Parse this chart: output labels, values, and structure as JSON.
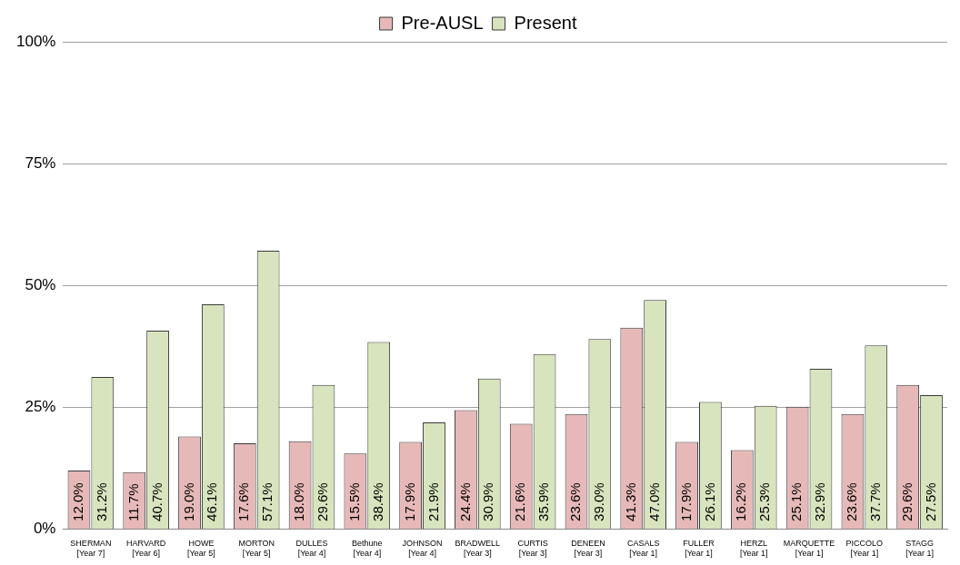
{
  "chart_data": {
    "type": "bar",
    "categories": [
      "SHERMAN\n[Year 7]",
      "HARVARD\n[Year 6]",
      "HOWE\n[Year 5]",
      "MORTON\n[Year 5]",
      "DULLES\n[Year 4]",
      "Bethune\n[Year 4]",
      "JOHNSON\n[Year 4]",
      "BRADWELL\n[Year 3]",
      "CURTIS\n[Year 3]",
      "DENEEN\n[Year 3]",
      "CASALS\n[Year 1]",
      "FULLER\n[Year 1]",
      "HERZL\n[Year 1]",
      "MARQUETTE\n[Year 1]",
      "PICCOLO\n[Year 1]",
      "STAGG\n[Year 1]"
    ],
    "series": [
      {
        "name": "Pre-AUSL",
        "color": "#e6b9b8",
        "values": [
          12.0,
          11.7,
          19.0,
          17.6,
          18.0,
          15.5,
          17.9,
          24.4,
          21.6,
          23.6,
          41.3,
          17.9,
          16.2,
          25.1,
          23.6,
          29.6
        ],
        "value_labels": [
          "12.0%",
          "11.7%",
          "19.0%",
          "17.6%",
          "18.0%",
          "15.5%",
          "17.9%",
          "24.4%",
          "21.6%",
          "23.6%",
          "41.3%",
          "17.9%",
          "16.2%",
          "25.1%",
          "23.6%",
          "29.6%"
        ]
      },
      {
        "name": "Present",
        "color": "#d7e4bd",
        "values": [
          31.2,
          40.7,
          46.1,
          57.1,
          29.6,
          38.4,
          21.9,
          30.9,
          35.9,
          39.0,
          47.0,
          26.1,
          25.3,
          32.9,
          37.7,
          27.5
        ],
        "value_labels": [
          "31.2%",
          "40.7%",
          "46.1%",
          "57.1%",
          "29.6%",
          "38.4%",
          "21.9%",
          "30.9%",
          "35.9%",
          "39.0%",
          "47.0%",
          "26.1%",
          "25.3%",
          "32.9%",
          "37.7%",
          "27.5%"
        ]
      }
    ],
    "ylim": [
      0,
      100
    ],
    "yticks": [
      {
        "value": 0,
        "label": "0%"
      },
      {
        "value": 25,
        "label": "25%"
      },
      {
        "value": 50,
        "label": "50%"
      },
      {
        "value": 75,
        "label": "75%"
      },
      {
        "value": 100,
        "label": "100%"
      }
    ],
    "grid": "y",
    "legend": "top"
  }
}
